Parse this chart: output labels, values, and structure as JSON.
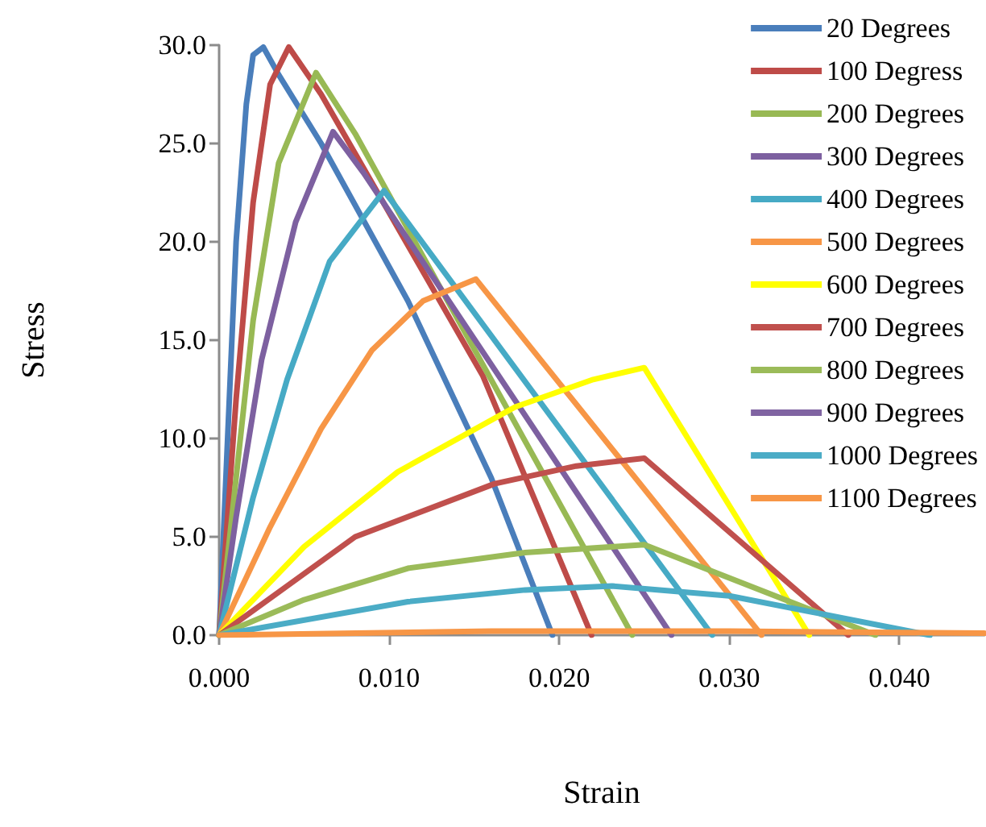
{
  "chart_data": {
    "type": "line",
    "xlabel": "Strain",
    "ylabel": "Stress",
    "xlim": [
      0,
      0.045
    ],
    "ylim": [
      0,
      30
    ],
    "xticks": [
      {
        "value": 0,
        "label": "0.000"
      },
      {
        "value": 0.01,
        "label": "0.010"
      },
      {
        "value": 0.02,
        "label": "0.020"
      },
      {
        "value": 0.03,
        "label": "0.030"
      },
      {
        "value": 0.04,
        "label": "0.040"
      }
    ],
    "yticks": [
      {
        "value": 0,
        "label": "0.0"
      },
      {
        "value": 5,
        "label": "5.0"
      },
      {
        "value": 10,
        "label": "10.0"
      },
      {
        "value": 15,
        "label": "15.0"
      },
      {
        "value": 20,
        "label": "20.0"
      },
      {
        "value": 25,
        "label": "25.0"
      },
      {
        "value": 30,
        "label": "30.0"
      }
    ],
    "grid": false,
    "legend": "top right",
    "marker": "none",
    "line_style": "solid",
    "series": [
      {
        "name": "20 Degrees",
        "color": "#4a7ebb",
        "x": [
          0,
          0.0005,
          0.001,
          0.0016,
          0.002,
          0.0026,
          0.0035,
          0.006,
          0.0111,
          0.016,
          0.0196
        ],
        "values": [
          0,
          10,
          20,
          27,
          29.5,
          29.9,
          28.5,
          25,
          17,
          8,
          0
        ]
      },
      {
        "name": "100 Degress",
        "color": "#be4b48",
        "x": [
          0,
          0.001,
          0.002,
          0.003,
          0.0041,
          0.006,
          0.0155,
          0.0219
        ],
        "values": [
          0,
          12,
          22,
          28,
          29.9,
          27.5,
          13.2,
          0
        ]
      },
      {
        "name": "200 Degrees",
        "color": "#98b954",
        "x": [
          0,
          0.001,
          0.002,
          0.0035,
          0.0057,
          0.008,
          0.0243
        ],
        "values": [
          0,
          8,
          16,
          24,
          28.6,
          25.5,
          0
        ]
      },
      {
        "name": "300 Degrees",
        "color": "#7d60a0",
        "x": [
          0,
          0.001,
          0.0025,
          0.0045,
          0.0067,
          0.0085,
          0.0266
        ],
        "values": [
          0,
          6,
          14,
          21,
          25.6,
          23.5,
          0
        ]
      },
      {
        "name": "400 Degrees",
        "color": "#46aac5",
        "x": [
          0,
          0.002,
          0.004,
          0.0065,
          0.0097,
          0.0115,
          0.029
        ],
        "values": [
          0,
          7,
          13,
          19,
          22.6,
          20.5,
          0
        ]
      },
      {
        "name": "500 Degrees",
        "color": "#f79646",
        "x": [
          0,
          0.003,
          0.006,
          0.009,
          0.012,
          0.0151,
          0.0319
        ],
        "values": [
          0,
          5.5,
          10.5,
          14.5,
          17,
          18.1,
          0
        ]
      },
      {
        "name": "600 Degrees",
        "color": "#ffff00",
        "x": [
          0,
          0.005,
          0.0105,
          0.0174,
          0.022,
          0.025,
          0.0347
        ],
        "values": [
          0,
          4.5,
          8.3,
          11.6,
          13,
          13.6,
          0
        ]
      },
      {
        "name": "700 Degrees",
        "color": "#c0504d",
        "x": [
          0,
          0.008,
          0.0162,
          0.021,
          0.025,
          0.037
        ],
        "values": [
          0,
          5,
          7.7,
          8.6,
          9,
          0
        ]
      },
      {
        "name": "800 Degrees",
        "color": "#9bbb59",
        "x": [
          0,
          0.005,
          0.0111,
          0.018,
          0.025,
          0.0386
        ],
        "values": [
          0,
          1.8,
          3.4,
          4.2,
          4.6,
          0
        ]
      },
      {
        "name": "900 Degrees",
        "color": "#8064a2"
      },
      {
        "name": "1000 Degrees",
        "color": "#4bacc6",
        "x": [
          0,
          0.0111,
          0.018,
          0.0231,
          0.03,
          0.0418
        ],
        "values": [
          0,
          1.7,
          2.3,
          2.5,
          2,
          0
        ]
      },
      {
        "name": "1100 Degrees",
        "color": "#f79646",
        "x": [
          0,
          0.016,
          0.03,
          0.045
        ],
        "values": [
          0,
          0.2,
          0.2,
          0.1
        ]
      }
    ]
  }
}
